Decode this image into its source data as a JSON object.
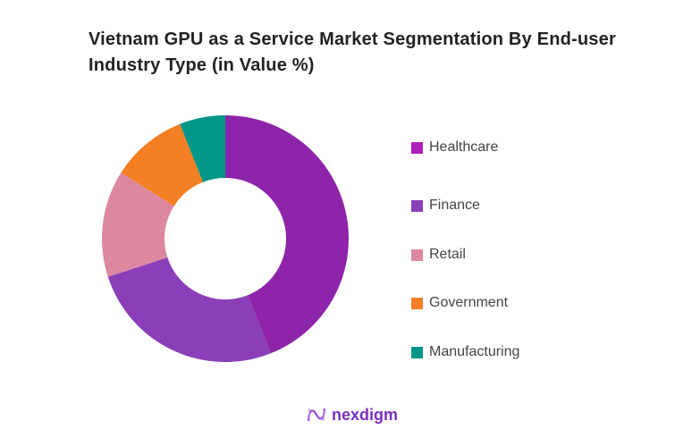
{
  "chart_data": {
    "type": "pie",
    "title": "Vietnam GPU as a Service Market Segmentation By End-user Industry Type (in Value %)",
    "categories": [
      "Healthcare",
      "Finance",
      "Retail",
      "Government",
      "Manufacturing"
    ],
    "values": [
      44,
      26,
      14,
      10,
      6
    ],
    "colors": [
      "#8E24AA",
      "#8A3FB8",
      "#DD88A0",
      "#F47F24",
      "#009688"
    ],
    "legend_colors": [
      "#B01EBA",
      "#8A3FB8",
      "#DD88A0",
      "#F47F24",
      "#009688"
    ],
    "donut": true,
    "legend_position": "right"
  },
  "brand": {
    "name": "nexdigm",
    "color": "#7B2FBE"
  }
}
